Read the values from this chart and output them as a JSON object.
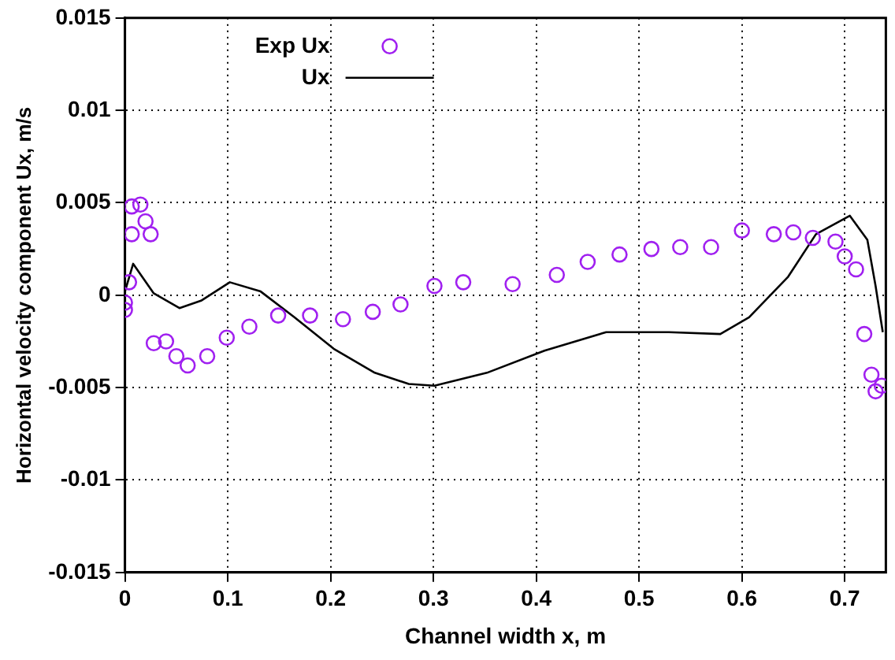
{
  "chart_data": {
    "type": "scatter",
    "xlabel": "Channel width x, m",
    "ylabel": "Horizontal velocity component Ux, m/s",
    "xlim": [
      0,
      0.74
    ],
    "xticks": [
      0,
      0.1,
      0.2,
      0.3,
      0.4,
      0.5,
      0.6,
      0.7
    ],
    "ylim": [
      -0.015,
      0.015
    ],
    "yticks": [
      -0.015,
      -0.01,
      -0.005,
      0,
      0.005,
      0.01,
      0.015
    ],
    "grid": true,
    "legend": "top left",
    "series": [
      {
        "name": "Exp Ux",
        "type": "scatter",
        "marker": "circle",
        "color": "#a020f0",
        "x": [
          0,
          0,
          0.004,
          0.0066,
          0.0066,
          0.015,
          0.02,
          0.025,
          0.028,
          0.04,
          0.05,
          0.061,
          0.08,
          0.099,
          0.121,
          0.149,
          0.18,
          0.212,
          0.241,
          0.268,
          0.301,
          0.329,
          0.377,
          0.42,
          0.45,
          0.481,
          0.512,
          0.54,
          0.57,
          0.6,
          0.631,
          0.65,
          0.669,
          0.691,
          0.7,
          0.711,
          0.719,
          0.726,
          0.73,
          0.736
        ],
        "values": [
          -0.0004,
          -0.0008,
          0.0007,
          0.0048,
          0.0033,
          0.0049,
          0.004,
          0.0033,
          -0.0026,
          -0.0025,
          -0.0033,
          -0.0038,
          -0.0033,
          -0.0023,
          -0.0017,
          -0.0011,
          -0.0011,
          -0.0013,
          -0.0009,
          -0.0005,
          0.0005,
          0.0007,
          0.0006,
          0.0011,
          0.0018,
          0.0022,
          0.0025,
          0.0026,
          0.0026,
          0.0035,
          0.0033,
          0.0034,
          0.0031,
          0.0029,
          0.0021,
          0.0014,
          -0.0021,
          -0.0043,
          -0.0052,
          -0.0049
        ]
      },
      {
        "name": "Ux",
        "type": "line",
        "marker": "none",
        "line_style": "solid",
        "color": "#000000",
        "x": [
          0,
          0.008,
          0.028,
          0.053,
          0.074,
          0.102,
          0.132,
          0.165,
          0.203,
          0.243,
          0.276,
          0.301,
          0.352,
          0.408,
          0.468,
          0.529,
          0.579,
          0.607,
          0.645,
          0.672,
          0.705,
          0.722,
          0.73,
          0.737
        ],
        "values": [
          0.0002,
          0.0017,
          0.0001,
          -0.0007,
          -0.0003,
          0.0007,
          0.0002,
          -0.0012,
          -0.0029,
          -0.0042,
          -0.0048,
          -0.0049,
          -0.0042,
          -0.003,
          -0.002,
          -0.002,
          -0.0021,
          -0.0012,
          0.001,
          0.0033,
          0.0043,
          0.003,
          0.0005,
          -0.002
        ]
      }
    ]
  }
}
